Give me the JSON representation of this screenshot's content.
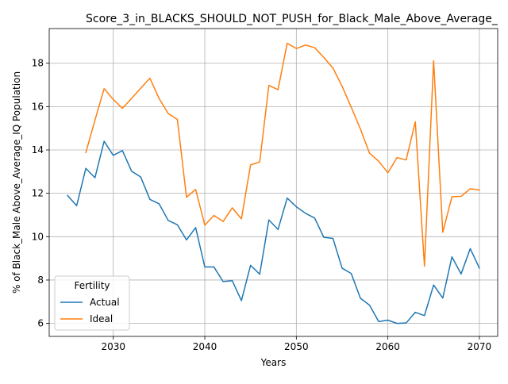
{
  "chart_data": {
    "type": "line",
    "title": "Score_3_in_BLACKS_SHOULD_NOT_PUSH_for_Black_Male_Above_Average_",
    "xlabel": "Years",
    "ylabel": "% of Black_Male Above_Average_IQ Population",
    "xlim": [
      2023,
      2072
    ],
    "ylim": [
      5.4,
      19.6
    ],
    "xticks": [
      2030,
      2040,
      2050,
      2060,
      2070
    ],
    "yticks": [
      6,
      8,
      10,
      12,
      14,
      16,
      18
    ],
    "grid": true,
    "legend": {
      "title": "Fertility",
      "placement": "lower-left"
    },
    "series": [
      {
        "name": "Actual",
        "color": "#1f77b4",
        "x": [
          2025,
          2026,
          2027,
          2028,
          2029,
          2030,
          2031,
          2032,
          2033,
          2034,
          2035,
          2036,
          2037,
          2038,
          2039,
          2040,
          2041,
          2042,
          2043,
          2044,
          2045,
          2046,
          2047,
          2048,
          2049,
          2050,
          2051,
          2052,
          2053,
          2054,
          2055,
          2056,
          2057,
          2058,
          2059,
          2060,
          2061,
          2062,
          2063,
          2064,
          2065,
          2066,
          2067,
          2068,
          2069,
          2070
        ],
        "values": [
          11.9,
          11.43,
          13.15,
          12.72,
          14.4,
          13.75,
          13.97,
          13.02,
          12.75,
          11.72,
          11.52,
          10.75,
          10.55,
          9.85,
          10.42,
          8.6,
          8.6,
          7.93,
          7.97,
          7.05,
          8.68,
          8.27,
          10.77,
          10.33,
          11.78,
          11.38,
          11.08,
          10.86,
          9.97,
          9.92,
          8.55,
          8.3,
          7.16,
          6.84,
          6.08,
          6.15,
          6.0,
          6.02,
          6.51,
          6.36,
          7.77,
          7.17,
          9.07,
          8.28,
          9.45,
          8.55
        ]
      },
      {
        "name": "Ideal",
        "color": "#ff7f0e",
        "x": [
          2027,
          2028,
          2029,
          2030,
          2031,
          2032,
          2033,
          2034,
          2035,
          2036,
          2037,
          2038,
          2039,
          2040,
          2041,
          2042,
          2043,
          2044,
          2045,
          2046,
          2047,
          2048,
          2049,
          2050,
          2051,
          2052,
          2053,
          2054,
          2055,
          2056,
          2057,
          2058,
          2059,
          2060,
          2061,
          2062,
          2063,
          2064,
          2065,
          2066,
          2067,
          2068,
          2069,
          2070
        ],
        "values": [
          13.88,
          15.38,
          16.83,
          16.33,
          15.92,
          16.38,
          16.85,
          17.31,
          16.38,
          15.68,
          15.41,
          11.82,
          12.18,
          10.53,
          10.98,
          10.7,
          11.33,
          10.82,
          13.31,
          13.45,
          16.98,
          16.78,
          18.92,
          18.68,
          18.84,
          18.72,
          18.27,
          17.78,
          16.94,
          15.97,
          14.97,
          13.85,
          13.48,
          12.95,
          13.65,
          13.54,
          15.3,
          8.64,
          18.12,
          10.2,
          11.84,
          11.86,
          12.21,
          12.15
        ]
      }
    ]
  }
}
